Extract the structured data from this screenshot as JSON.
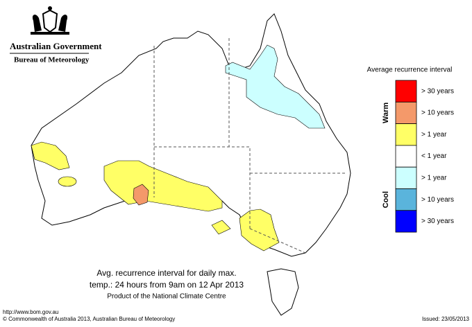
{
  "header": {
    "government": "Australian Government",
    "agency": "Bureau of Meteorology"
  },
  "map": {
    "title_line1": "Avg. recurrence interval for daily max.",
    "title_line2": "temp.: 24 hours from 9am on 12 Apr 2013",
    "product": "Product of the National Climate Centre"
  },
  "legend": {
    "title": "Average recurrence interval",
    "groups": [
      {
        "label": "Warm"
      },
      {
        "label": "Cool"
      }
    ],
    "items": [
      {
        "label": "> 30 years",
        "color": "#ff0000"
      },
      {
        "label": "> 10 years",
        "color": "#f4996a"
      },
      {
        "label": "> 1 year",
        "color": "#ffff66"
      },
      {
        "label": "< 1 year",
        "color": "#ffffff"
      },
      {
        "label": "> 1 year",
        "color": "#ccffff"
      },
      {
        "label": "> 10 years",
        "color": "#5ab4dc"
      },
      {
        "label": "> 30 years",
        "color": "#0000ff"
      }
    ]
  },
  "footer": {
    "url": "http://www.bom.gov.au",
    "copyright": "© Commonwealth of Australia 2013, Australian Bureau of Meteorology",
    "issued": "Issued: 23/05/2013"
  }
}
